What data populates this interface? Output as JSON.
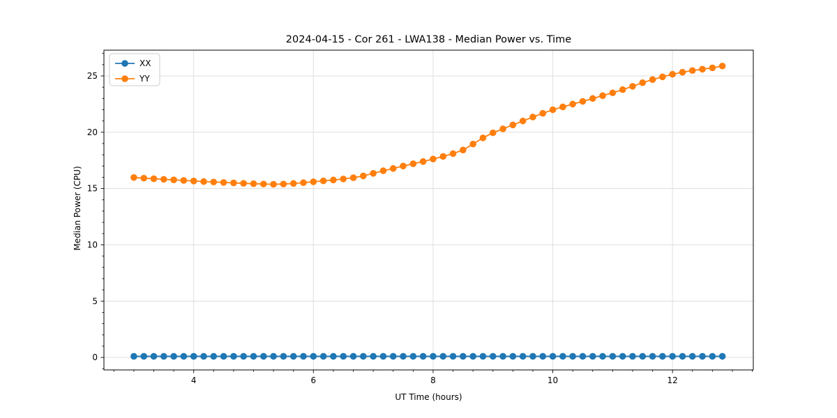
{
  "figure": {
    "title": "2024-04-15 - Cor 261 - LWA138 - Median Power vs. Time",
    "xlabel": "UT Time (hours)",
    "ylabel": "Median Power (CPU)"
  },
  "chart_data": {
    "type": "line",
    "title": "2024-04-15 - Cor 261 - LWA138 - Median Power vs. Time",
    "xlabel": "UT Time (hours)",
    "ylabel": "Median Power (CPU)",
    "xlim": [
      2.5,
      13.35
    ],
    "ylim": [
      -1.11,
      27.29
    ],
    "x_ticks": [
      4,
      6,
      8,
      10,
      12
    ],
    "y_ticks": [
      0,
      5,
      10,
      15,
      20,
      25
    ],
    "x_minor_step": 0.3333333,
    "y_minor_step": 1,
    "grid": true,
    "legend_position": "upper-left",
    "background": "#ffffff",
    "grid_color": "#dcdcdc",
    "x": [
      3.0,
      3.167,
      3.333,
      3.5,
      3.667,
      3.833,
      4.0,
      4.167,
      4.333,
      4.5,
      4.667,
      4.833,
      5.0,
      5.167,
      5.333,
      5.5,
      5.667,
      5.833,
      6.0,
      6.167,
      6.333,
      6.5,
      6.667,
      6.833,
      7.0,
      7.167,
      7.333,
      7.5,
      7.667,
      7.833,
      8.0,
      8.167,
      8.333,
      8.5,
      8.667,
      8.833,
      9.0,
      9.167,
      9.333,
      9.5,
      9.667,
      9.833,
      10.0,
      10.167,
      10.333,
      10.5,
      10.667,
      10.833,
      11.0,
      11.167,
      11.333,
      11.5,
      11.667,
      11.833,
      12.0,
      12.167,
      12.333,
      12.5,
      12.667,
      12.833
    ],
    "series": [
      {
        "name": "XX",
        "color": "#1f77b4",
        "values": [
          0.1,
          0.1,
          0.1,
          0.1,
          0.1,
          0.1,
          0.1,
          0.1,
          0.1,
          0.1,
          0.1,
          0.1,
          0.1,
          0.1,
          0.1,
          0.1,
          0.1,
          0.1,
          0.1,
          0.1,
          0.1,
          0.1,
          0.1,
          0.1,
          0.1,
          0.1,
          0.1,
          0.1,
          0.1,
          0.1,
          0.1,
          0.1,
          0.1,
          0.1,
          0.1,
          0.1,
          0.1,
          0.1,
          0.1,
          0.1,
          0.1,
          0.1,
          0.1,
          0.1,
          0.1,
          0.1,
          0.1,
          0.1,
          0.1,
          0.1,
          0.1,
          0.1,
          0.1,
          0.1,
          0.1,
          0.1,
          0.1,
          0.1,
          0.1,
          0.1
        ]
      },
      {
        "name": "YY",
        "color": "#ff7f0e",
        "values": [
          15.98,
          15.92,
          15.87,
          15.82,
          15.77,
          15.72,
          15.67,
          15.62,
          15.58,
          15.54,
          15.5,
          15.46,
          15.43,
          15.4,
          15.38,
          15.4,
          15.45,
          15.52,
          15.6,
          15.68,
          15.76,
          15.85,
          15.96,
          16.12,
          16.35,
          16.58,
          16.78,
          17.0,
          17.2,
          17.4,
          17.62,
          17.85,
          18.1,
          18.42,
          18.95,
          19.5,
          19.95,
          20.3,
          20.65,
          21.0,
          21.35,
          21.68,
          22.0,
          22.25,
          22.5,
          22.74,
          23.0,
          23.25,
          23.5,
          23.78,
          24.08,
          24.4,
          24.68,
          24.92,
          25.15,
          25.33,
          25.48,
          25.6,
          25.72,
          25.88
        ]
      }
    ]
  }
}
